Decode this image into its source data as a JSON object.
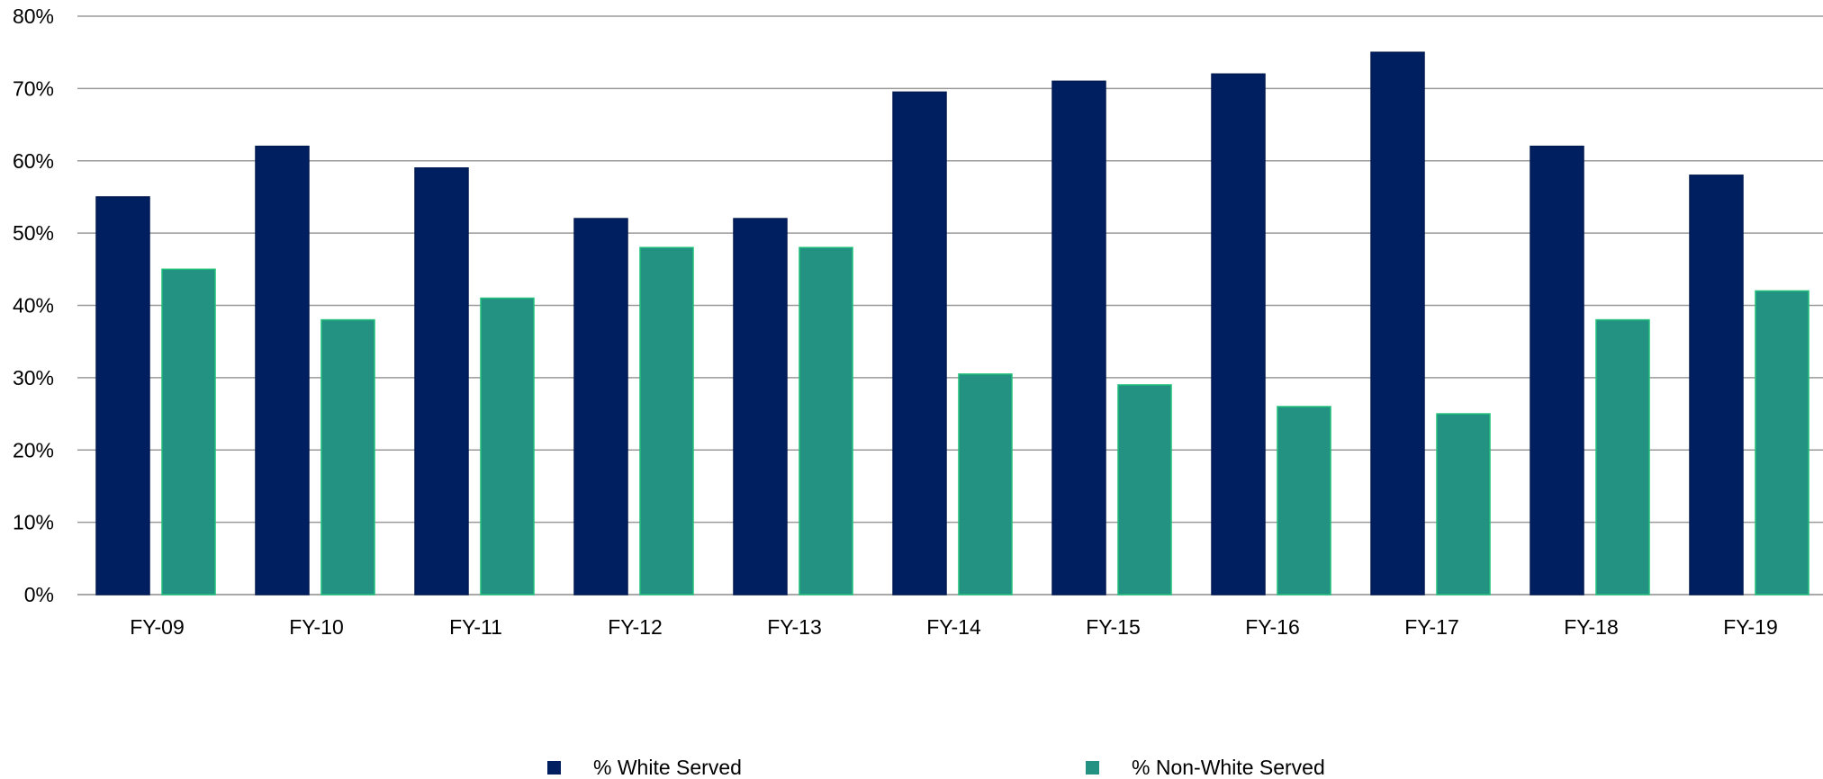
{
  "chart_data": {
    "type": "bar",
    "title": "",
    "xlabel": "",
    "ylabel": "",
    "categories": [
      "FY-09",
      "FY-10",
      "FY-11",
      "FY-12",
      "FY-13",
      "FY-14",
      "FY-15",
      "FY-16",
      "FY-17",
      "FY-18",
      "FY-19"
    ],
    "series": [
      {
        "name": "% White Served",
        "color": "#001F60",
        "values": [
          55,
          62,
          59,
          52,
          52,
          69.5,
          71,
          72,
          75,
          62,
          58
        ]
      },
      {
        "name": "% Non-White Served",
        "color": "#239283",
        "values": [
          45,
          38,
          41,
          48,
          48,
          30.5,
          29,
          26,
          25,
          38,
          42
        ]
      }
    ],
    "ylim": [
      0,
      80
    ],
    "yticks": [
      0,
      10,
      20,
      30,
      40,
      50,
      60,
      70,
      80
    ],
    "ytick_labels": [
      "0%",
      "10%",
      "20%",
      "30%",
      "40%",
      "50%",
      "60%",
      "70%",
      "80%"
    ],
    "grid": true,
    "legend_position": "bottom"
  }
}
